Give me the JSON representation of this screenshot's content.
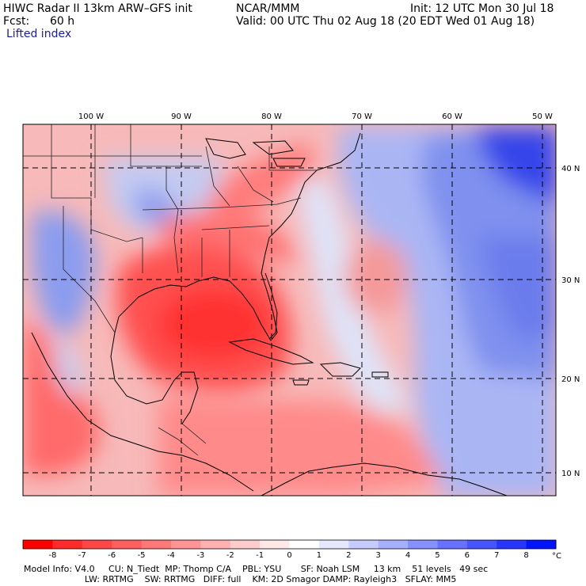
{
  "header": {
    "model": "HIWC Radar II 13km ARW–GFS init",
    "org": "NCAR/MMM",
    "init": "Init: 12 UTC Mon 30 Jul 18",
    "fcst_label": "Fcst:",
    "fcst_value": "60 h",
    "valid": "Valid: 00 UTC Thu 02 Aug 18 (20 EDT Wed 01 Aug 18)",
    "field": "Lifted index"
  },
  "map": {
    "lon_labels": [
      "100 W",
      "90 W",
      "80 W",
      "70 W",
      "60 W",
      "50 W"
    ],
    "lat_labels": [
      "40 N",
      "30 N",
      "20 N",
      "10 N"
    ],
    "colors": {
      "unstable_strong": "#ff2020",
      "unstable": "#ff7a7a",
      "neutral": "#fbe4e4",
      "stable": "#9fb0f0",
      "stable_strong": "#2a3ae8"
    }
  },
  "colorbar": {
    "labels": [
      "-8",
      "-7",
      "-6",
      "-5",
      "-4",
      "-3",
      "-2",
      "-1",
      "0",
      "1",
      "2",
      "3",
      "4",
      "5",
      "6",
      "7",
      "8"
    ],
    "unit": "°C",
    "colors": [
      "#ff0000",
      "#ff2a2a",
      "#ff4646",
      "#ff5e5e",
      "#ff7878",
      "#ff9494",
      "#ffb0b0",
      "#ffcccc",
      "#ffe8e8",
      "#ffffff",
      "#e6e8ff",
      "#c6ccff",
      "#a6b0ff",
      "#8691ff",
      "#6672ff",
      "#4654ff",
      "#2636ff",
      "#0014ff"
    ]
  },
  "footer": {
    "line1": "Model Info: V4.0     CU: N_Tiedt  MP: Thomp C/A    PBL: YSU       SF: Noah LSM     13 km    51 levels   49 sec",
    "line2": "                      LW: RRTMG    SW: RRTMG   DIFF: full    KM: 2D Smagor DAMP: Rayleigh3   SFLAY: MM5"
  }
}
